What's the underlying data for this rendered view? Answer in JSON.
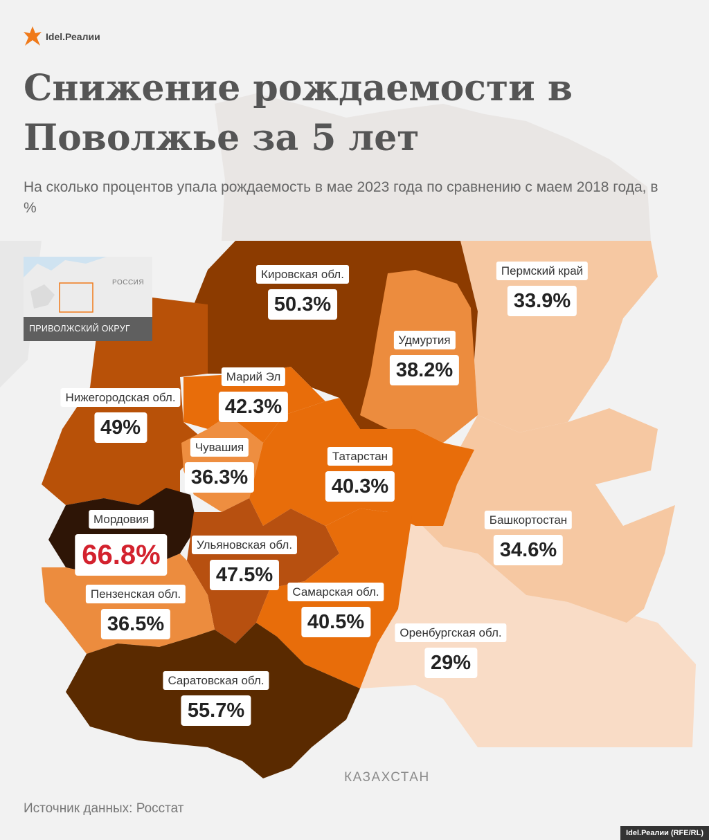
{
  "brand": {
    "name": "Idel.Реалии"
  },
  "title": "Снижение рождаемости в Поволжье за 5 лет",
  "subtitle": "На сколько процентов упала рождаемость в мае 2023 года по сравнению с маем 2018 года, в %",
  "inset": {
    "country_label": "РОССИЯ",
    "district_label": "ПРИВОЛЖСКИЙ ОКРУГ"
  },
  "regions": [
    {
      "name": "Кировская обл.",
      "value": "50.3%",
      "color": "#8c3b00"
    },
    {
      "name": "Пермский край",
      "value": "33.9%",
      "color": "#f6c8a2"
    },
    {
      "name": "Удмуртия",
      "value": "38.2%",
      "color": "#ec8c3e"
    },
    {
      "name": "Марий Эл",
      "value": "42.3%",
      "color": "#e86d0a"
    },
    {
      "name": "Нижегородская обл.",
      "value": "49%",
      "color": "#b85108"
    },
    {
      "name": "Чувашия",
      "value": "36.3%",
      "color": "#ee8e40"
    },
    {
      "name": "Татарстан",
      "value": "40.3%",
      "color": "#e86d0a"
    },
    {
      "name": "Мордовия",
      "value": "66.8%",
      "color": "#2e1506"
    },
    {
      "name": "Ульяновская обл.",
      "value": "47.5%",
      "color": "#b75010"
    },
    {
      "name": "Башкортостан",
      "value": "34.6%",
      "color": "#f6c8a2"
    },
    {
      "name": "Пензенская обл.",
      "value": "36.5%",
      "color": "#ec8c3e"
    },
    {
      "name": "Самарская обл.",
      "value": "40.5%",
      "color": "#e86d0a"
    },
    {
      "name": "Оренбургская обл.",
      "value": "29%",
      "color": "#f9dcc6"
    },
    {
      "name": "Саратовская обл.",
      "value": "55.7%",
      "color": "#5a2a00"
    }
  ],
  "country_label": "КАЗАХСТАН",
  "source": "Источник данных: Росстат",
  "credit": "Idel.Реалии (RFE/RL)"
}
